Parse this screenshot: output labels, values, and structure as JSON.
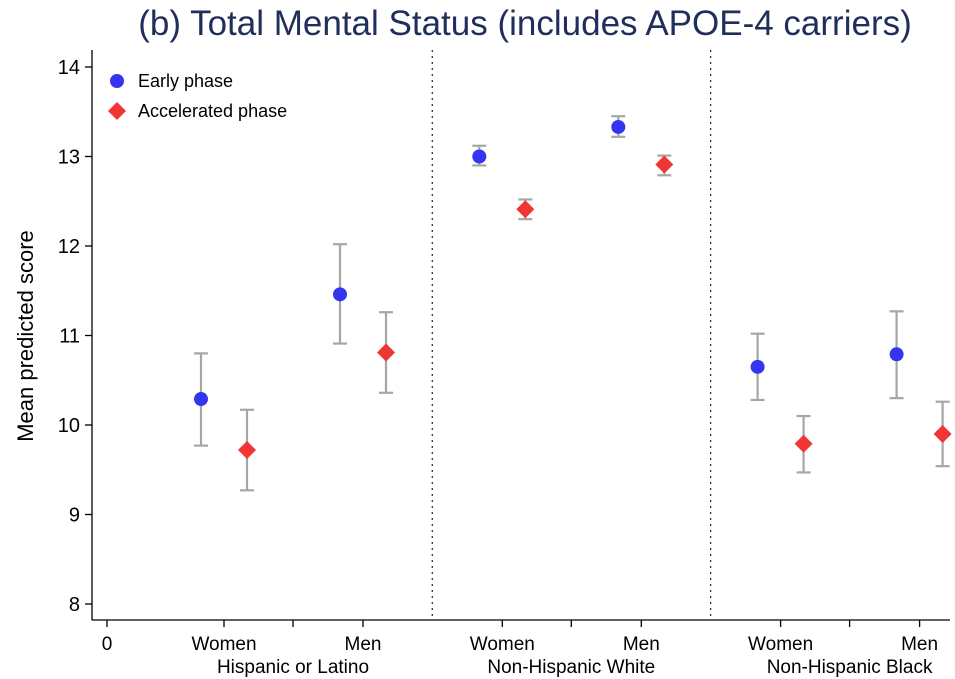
{
  "chart_data": {
    "type": "scatter",
    "title": "(b) Total Mental Status (includes APOE-4 carriers)",
    "ylabel": "Mean predicted score",
    "xlabel": "",
    "ylim": [
      8,
      14
    ],
    "yticks": [
      8,
      9,
      10,
      11,
      12,
      13,
      14
    ],
    "x_origin_label": "0",
    "groups": [
      {
        "label": "Hispanic or Latino",
        "subgroups": [
          "Women",
          "Men"
        ]
      },
      {
        "label": "Non-Hispanic White",
        "subgroups": [
          "Women",
          "Men"
        ]
      },
      {
        "label": "Non-Hispanic Black",
        "subgroups": [
          "Women",
          "Men"
        ]
      }
    ],
    "legend_position": "top-left",
    "series": [
      {
        "name": "Early phase",
        "marker": "circle",
        "color": "#3535f0",
        "points": [
          {
            "group": "Hispanic or Latino",
            "sex": "Women",
            "y": 10.29,
            "ci": [
              9.77,
              10.8
            ]
          },
          {
            "group": "Hispanic or Latino",
            "sex": "Men",
            "y": 11.46,
            "ci": [
              10.91,
              12.02
            ]
          },
          {
            "group": "Non-Hispanic White",
            "sex": "Women",
            "y": 13.0,
            "ci": [
              12.9,
              13.12
            ]
          },
          {
            "group": "Non-Hispanic White",
            "sex": "Men",
            "y": 13.33,
            "ci": [
              13.22,
              13.45
            ]
          },
          {
            "group": "Non-Hispanic Black",
            "sex": "Women",
            "y": 10.65,
            "ci": [
              10.28,
              11.02
            ]
          },
          {
            "group": "Non-Hispanic Black",
            "sex": "Men",
            "y": 10.79,
            "ci": [
              10.3,
              11.27
            ]
          }
        ]
      },
      {
        "name": "Accelerated phase",
        "marker": "diamond",
        "color": "#f03535",
        "points": [
          {
            "group": "Hispanic or Latino",
            "sex": "Women",
            "y": 9.72,
            "ci": [
              9.27,
              10.17
            ]
          },
          {
            "group": "Hispanic or Latino",
            "sex": "Men",
            "y": 10.81,
            "ci": [
              10.36,
              11.26
            ]
          },
          {
            "group": "Non-Hispanic White",
            "sex": "Women",
            "y": 12.41,
            "ci": [
              12.3,
              12.52
            ]
          },
          {
            "group": "Non-Hispanic White",
            "sex": "Men",
            "y": 12.91,
            "ci": [
              12.79,
              13.01
            ]
          },
          {
            "group": "Non-Hispanic Black",
            "sex": "Women",
            "y": 9.79,
            "ci": [
              9.47,
              10.1
            ]
          },
          {
            "group": "Non-Hispanic Black",
            "sex": "Men",
            "y": 9.9,
            "ci": [
              9.54,
              10.26
            ]
          }
        ]
      }
    ],
    "errorbar_color": "#a6a6a6",
    "separator_style": "dotted"
  }
}
